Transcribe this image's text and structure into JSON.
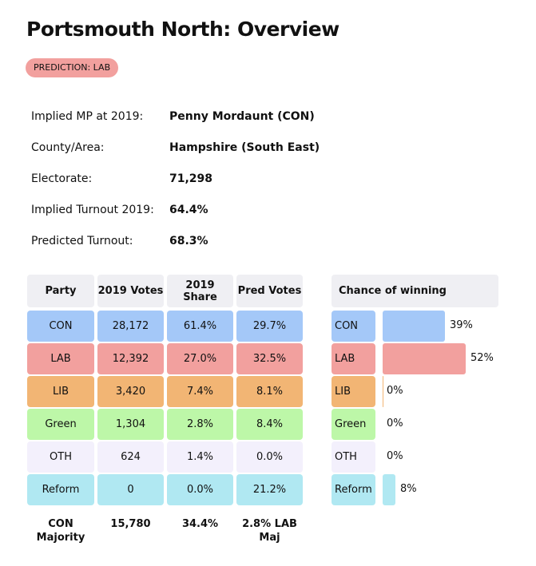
{
  "title": "Portsmouth North: Overview",
  "prediction": "PREDICTION: LAB",
  "info": [
    {
      "label": "Implied MP at 2019:",
      "value": "Penny Mordaunt  (CON)"
    },
    {
      "label": "County/Area:",
      "value": "Hampshire (South East)"
    },
    {
      "label": "Electorate:",
      "value": "71,298"
    },
    {
      "label": "Implied Turnout 2019:",
      "value": "64.4%"
    },
    {
      "label": "Predicted Turnout:",
      "value": "68.3%"
    }
  ],
  "table": {
    "headers": [
      "Party",
      "2019 Votes",
      "2019 Share",
      "Pred Votes"
    ],
    "rows": [
      {
        "party": "CON",
        "votes": "28,172",
        "share": "61.4%",
        "pred": "29.7%",
        "color": "#a4c8f8",
        "chance": 39,
        "chance_label": "39%"
      },
      {
        "party": "LAB",
        "votes": "12,392",
        "share": "27.0%",
        "pred": "32.5%",
        "color": "#f2a09e",
        "chance": 52,
        "chance_label": "52%"
      },
      {
        "party": "LIB",
        "votes": "3,420",
        "share": "7.4%",
        "pred": "8.1%",
        "color": "#f2b574",
        "chance": 0,
        "chance_label": "0%"
      },
      {
        "party": "Green",
        "votes": "1,304",
        "share": "2.8%",
        "pred": "8.4%",
        "color": "#bdf7a8",
        "chance": 0,
        "chance_label": "0%"
      },
      {
        "party": "OTH",
        "votes": "624",
        "share": "1.4%",
        "pred": "0.0%",
        "color": "#f3f0fc",
        "chance": 0,
        "chance_label": "0%"
      },
      {
        "party": "Reform",
        "votes": "0",
        "share": "0.0%",
        "pred": "21.2%",
        "color": "#b0e8f2",
        "chance": 8,
        "chance_label": "8%"
      }
    ],
    "footer": [
      "CON Majority",
      "15,780",
      "34.4%",
      "2.8% LAB Maj"
    ]
  },
  "chance_header": "Chance of winning"
}
